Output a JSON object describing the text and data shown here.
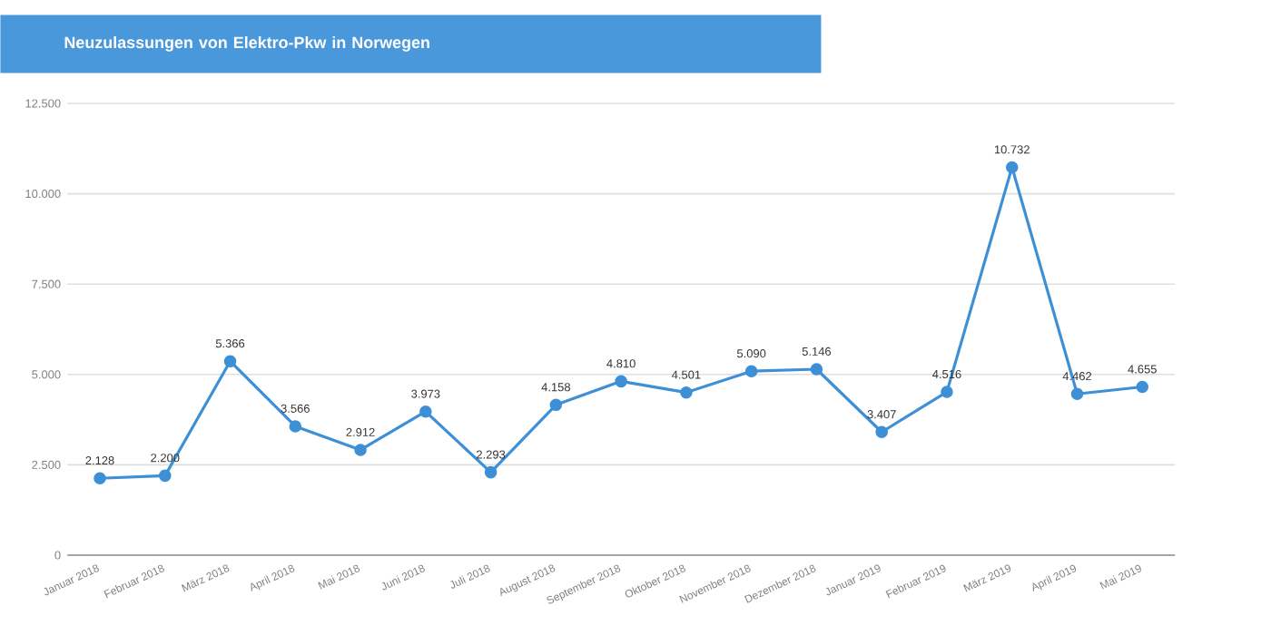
{
  "chart_data": {
    "type": "line",
    "title": "Neuzulassungen von Elektro-Pkw in Norwegen",
    "categories": [
      "Januar 2018",
      "Februar 2018",
      "März 2018",
      "April 2018",
      "Mai 2018",
      "Juni 2018",
      "Juli 2018",
      "August 2018",
      "September 2018",
      "Oktober 2018",
      "November 2018",
      "Dezember 2018",
      "Januar 2019",
      "Februar 2019",
      "März 2019",
      "April 2019",
      "Mai 2019"
    ],
    "values": [
      2128,
      2200,
      5366,
      3566,
      2912,
      3973,
      2293,
      4158,
      4810,
      4501,
      5090,
      5146,
      3407,
      4516,
      10732,
      4462,
      4655
    ],
    "value_labels": [
      "2.128",
      "2.200",
      "5.366",
      "3.566",
      "2.912",
      "3.973",
      "2.293",
      "4.158",
      "4.810",
      "4.501",
      "5.090",
      "5.146",
      "3.407",
      "4.516",
      "10.732",
      "4.462",
      "4.655"
    ],
    "color": "#3d8fd6",
    "ylim": [
      0,
      12500
    ],
    "yticks": [
      0,
      {
        "value": 2500,
        "label": "2.500"
      },
      {
        "value": 5000,
        "label": "5.000"
      },
      {
        "value": 7500,
        "label": "7.500"
      },
      {
        "value": 10000,
        "label": "10.000"
      },
      {
        "value": 12500,
        "label": "12.500"
      }
    ],
    "grid": "y",
    "marker": "circle",
    "line_style": "solid"
  }
}
